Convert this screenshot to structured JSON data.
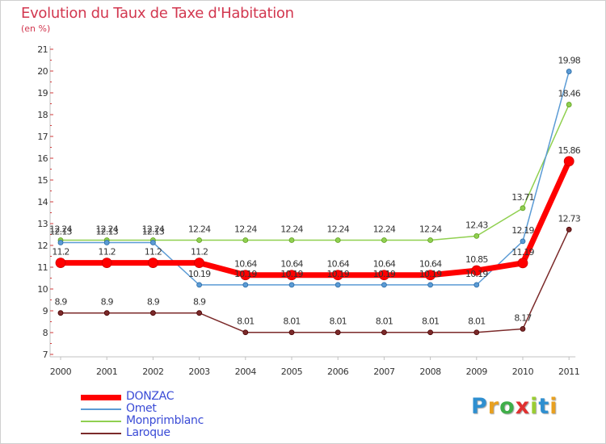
{
  "header": {
    "title": "Evolution du Taux de Taxe d'Habitation",
    "subtitle": "(en %)"
  },
  "logo": {
    "letters": [
      "P",
      "r",
      "o",
      "x",
      "i",
      "t",
      "i"
    ],
    "colors": [
      "#2f8fd0",
      "#e8a020",
      "#3fae49",
      "#e03030",
      "#9acd32",
      "#2f8fd0",
      "#e8a020"
    ]
  },
  "chart_data": {
    "type": "line",
    "title": "Evolution du Taux de Taxe d'Habitation",
    "ylabel": "(en %)",
    "xlabel": "",
    "categories": [
      "2000",
      "2001",
      "2002",
      "2003",
      "2004",
      "2005",
      "2006",
      "2007",
      "2008",
      "2009",
      "2010",
      "2011"
    ],
    "ylim": [
      7,
      21
    ],
    "yticks": [
      7,
      8,
      9,
      10,
      11,
      12,
      13,
      14,
      15,
      16,
      17,
      18,
      19,
      20,
      21
    ],
    "grid": false,
    "legend_position": "bottom-left",
    "series": [
      {
        "name": "DONZAC",
        "color": "#ff0000",
        "values": [
          11.2,
          11.2,
          11.2,
          11.2,
          10.64,
          10.64,
          10.64,
          10.64,
          10.64,
          10.85,
          11.19,
          15.86
        ],
        "labels": [
          "11.2",
          "11.2",
          "11.2",
          "11.2",
          "10.64",
          "10.64",
          "10.64",
          "10.64",
          "10.64",
          "10.85",
          "11.19",
          "15.86"
        ]
      },
      {
        "name": "Omet",
        "color": "#5b9bd5",
        "values": [
          12.13,
          12.13,
          12.13,
          10.19,
          10.19,
          10.19,
          10.19,
          10.19,
          10.19,
          10.19,
          12.19,
          19.98
        ],
        "labels": [
          "12.13",
          "12.13",
          "12.13",
          "10.19",
          "10.19",
          "10.19",
          "10.19",
          "10.19",
          "10.19",
          "10.19",
          "12.19",
          "19.98"
        ]
      },
      {
        "name": "Monprimblanc",
        "color": "#90d050",
        "values": [
          12.24,
          12.24,
          12.24,
          12.24,
          12.24,
          12.24,
          12.24,
          12.24,
          12.24,
          12.43,
          13.71,
          18.46
        ],
        "labels": [
          "12.24",
          "12.24",
          "12.24",
          "12.24",
          "12.24",
          "12.24",
          "12.24",
          "12.24",
          "12.24",
          "12.43",
          "13.71",
          "18.46"
        ]
      },
      {
        "name": "Laroque",
        "color": "#7b2a2a",
        "values": [
          8.9,
          8.9,
          8.9,
          8.9,
          8.01,
          8.01,
          8.01,
          8.01,
          8.01,
          8.01,
          8.17,
          12.73
        ],
        "labels": [
          "8.9",
          "8.9",
          "8.9",
          "8.9",
          "8.01",
          "8.01",
          "8.01",
          "8.01",
          "8.01",
          "8.01",
          "8.17",
          "12.73"
        ]
      }
    ]
  }
}
